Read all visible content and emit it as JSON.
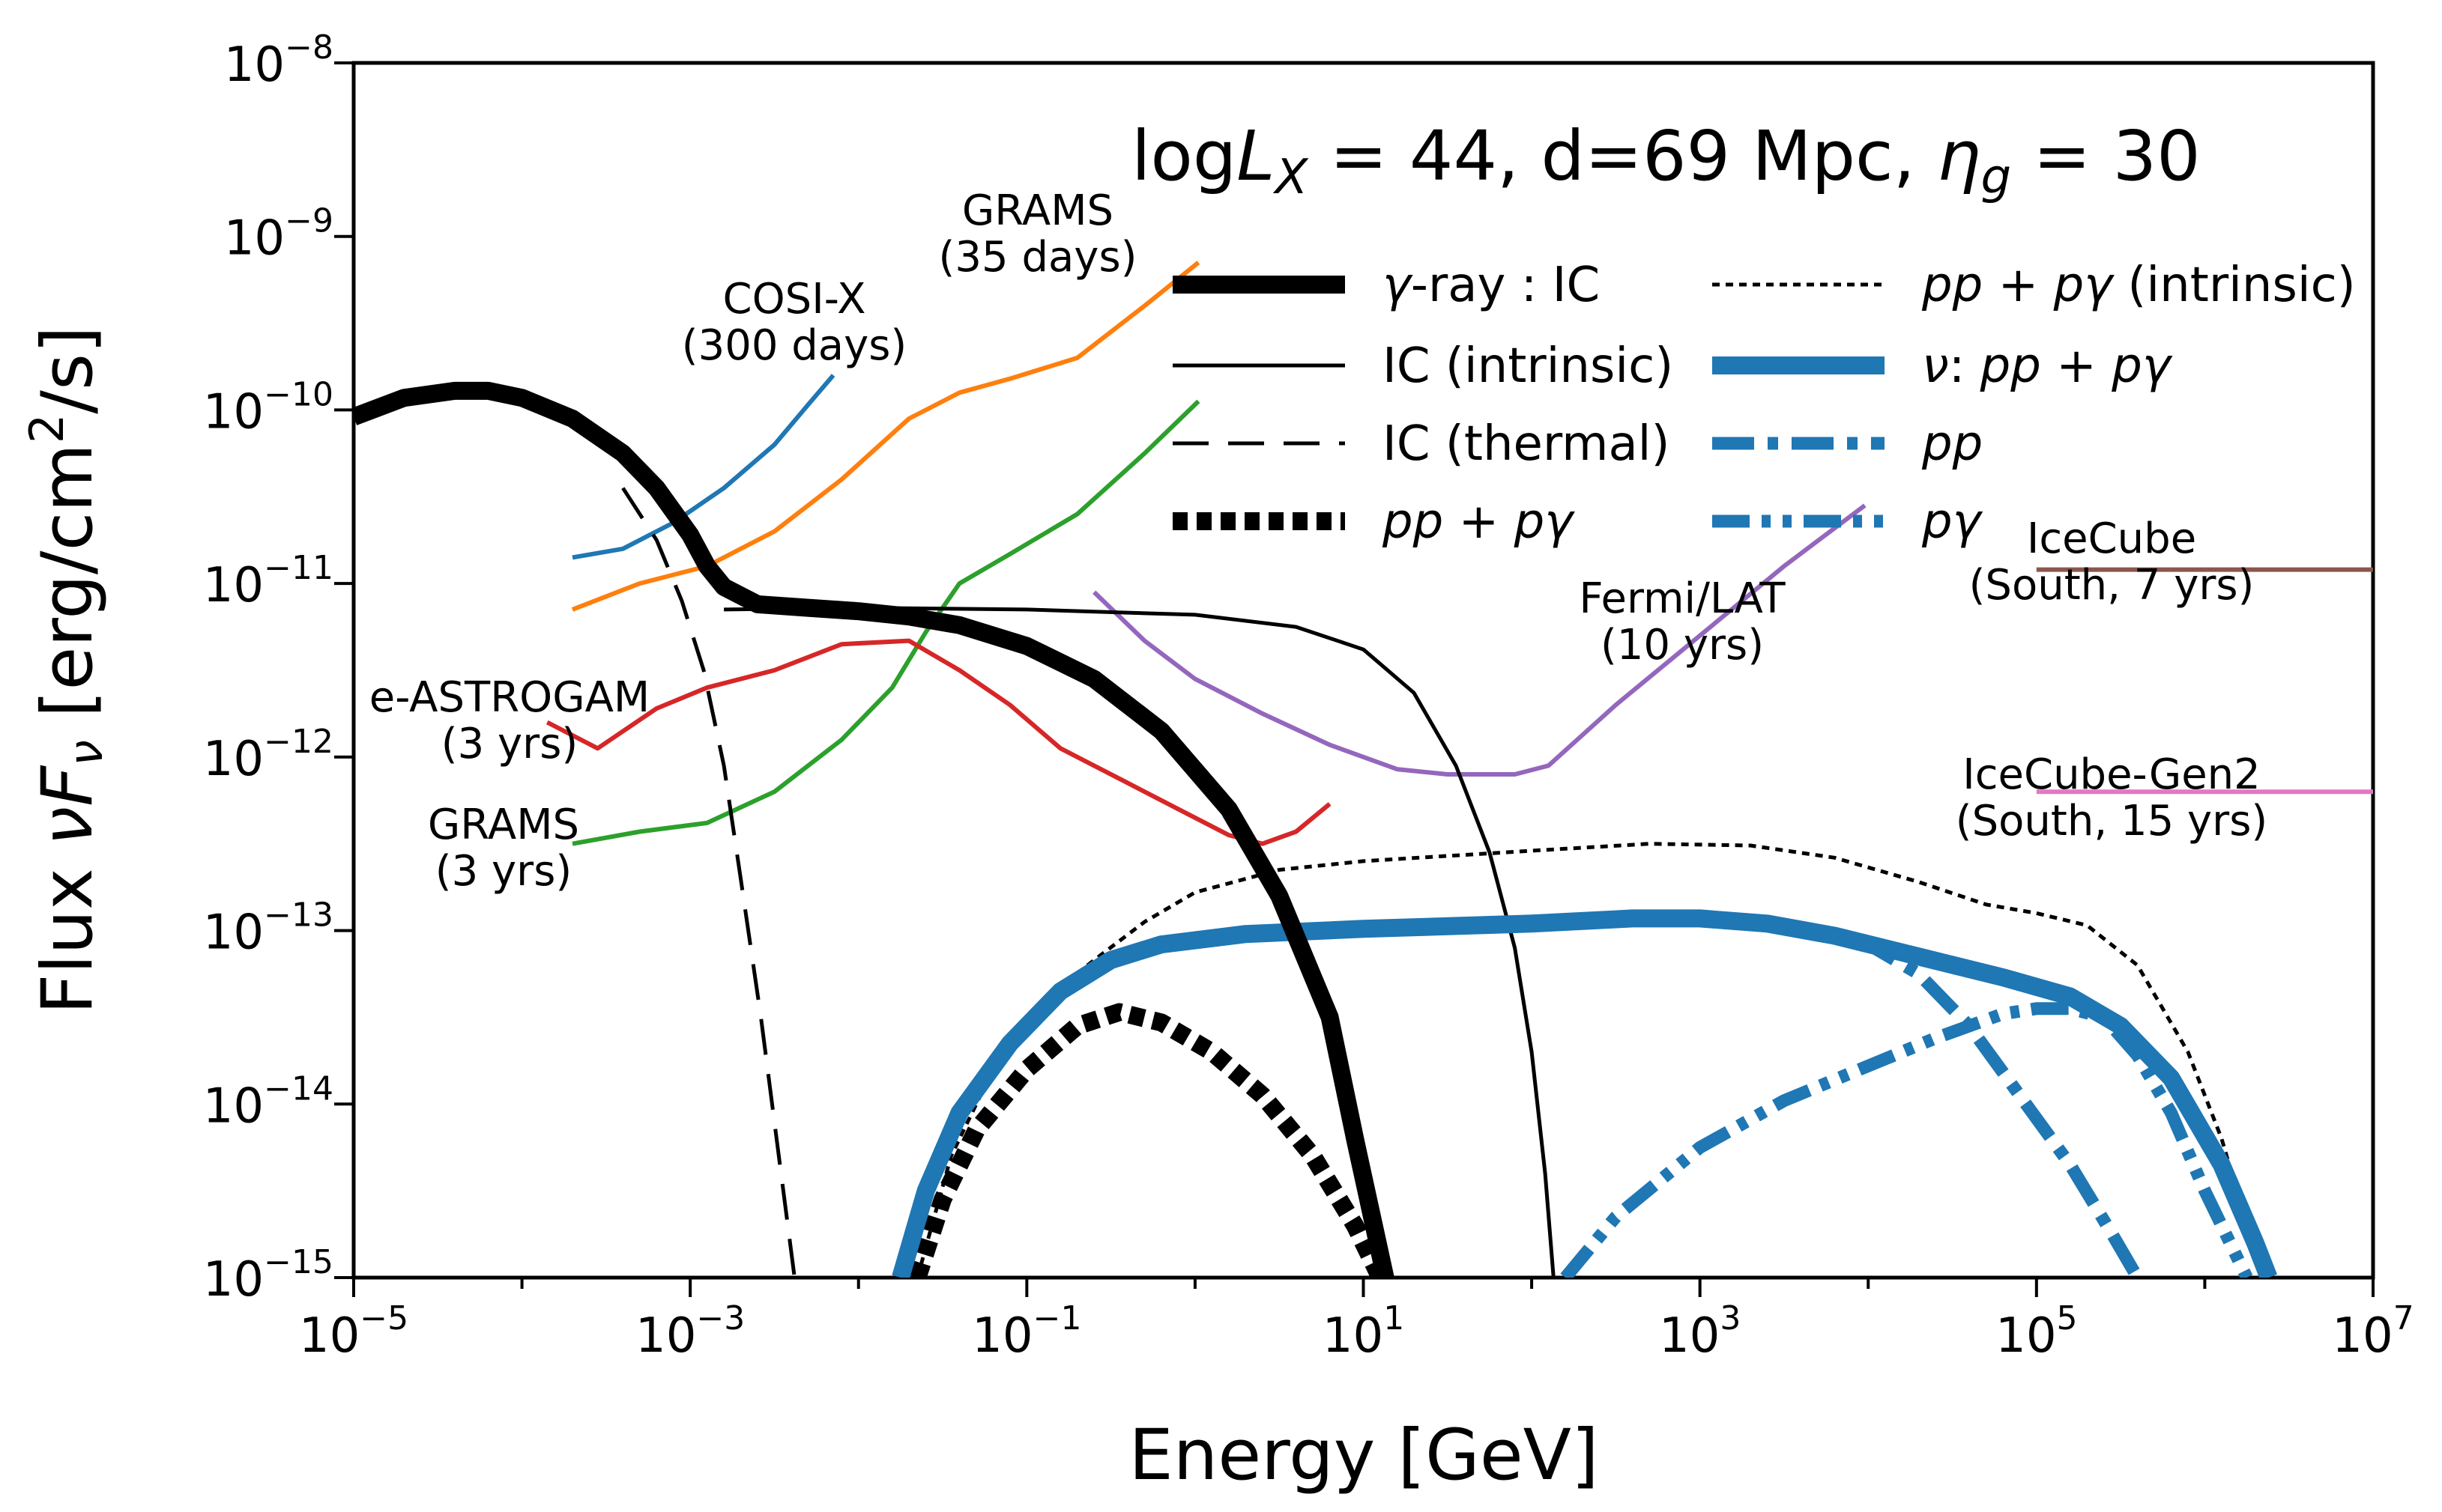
{
  "chart_data": {
    "type": "line",
    "title": "logL_X = 44, d=69 Mpc, η_g = 30",
    "title_parts": {
      "log": "log",
      "L": "L",
      "X": "X",
      "rest1": " = 44, d=69 Mpc, ",
      "eta": "η",
      "g": "g",
      "rest2": " = 30"
    },
    "xlabel": "Energy [GeV]",
    "ylabel": "Flux νF_ν [erg/cm²/s]",
    "ylabel_parts": {
      "a": "Flux ",
      "nu": "ν",
      "F": "F",
      "sub": "ν",
      "b": " [erg/cm",
      "sup": "2",
      "c": "/s]"
    },
    "xscale": "log",
    "yscale": "log",
    "xlim_log10": [
      -5,
      7
    ],
    "ylim_log10": [
      -15,
      -8
    ],
    "xticks": [
      {
        "exp": -5,
        "base": "10",
        "sup": "−5"
      },
      {
        "exp": -3,
        "base": "10",
        "sup": "−3"
      },
      {
        "exp": -1,
        "base": "10",
        "sup": "−1"
      },
      {
        "exp": 1,
        "base": "10",
        "sup": "1"
      },
      {
        "exp": 3,
        "base": "10",
        "sup": "3"
      },
      {
        "exp": 5,
        "base": "10",
        "sup": "5"
      },
      {
        "exp": 7,
        "base": "10",
        "sup": "7"
      }
    ],
    "yticks": [
      {
        "exp": -8,
        "base": "10",
        "sup": "−8"
      },
      {
        "exp": -9,
        "base": "10",
        "sup": "−9"
      },
      {
        "exp": -10,
        "base": "10",
        "sup": "−10"
      },
      {
        "exp": -11,
        "base": "10",
        "sup": "−11"
      },
      {
        "exp": -12,
        "base": "10",
        "sup": "−12"
      },
      {
        "exp": -13,
        "base": "10",
        "sup": "−13"
      },
      {
        "exp": -14,
        "base": "10",
        "sup": "−14"
      },
      {
        "exp": -15,
        "base": "10",
        "sup": "−15"
      }
    ],
    "legend": {
      "placement": "top-right",
      "entries": [
        {
          "key": "gamma_ic",
          "parts": [
            {
              "t": "γ",
              "i": true
            },
            {
              "t": "-ray : IC",
              "i": false
            }
          ]
        },
        {
          "key": "ic_intrinsic",
          "parts": [
            {
              "t": "IC (intrinsic)",
              "i": false
            }
          ]
        },
        {
          "key": "ic_thermal",
          "parts": [
            {
              "t": "IC (thermal)",
              "i": false
            }
          ]
        },
        {
          "key": "pp_pgamma",
          "parts": [
            {
              "t": "pp",
              "i": true
            },
            {
              "t": " + ",
              "i": false
            },
            {
              "t": "pγ",
              "i": true
            }
          ]
        },
        {
          "key": "pp_pgamma_intrinsic",
          "parts": [
            {
              "t": "pp",
              "i": true
            },
            {
              "t": " + ",
              "i": false
            },
            {
              "t": "pγ",
              "i": true
            },
            {
              "t": " (intrinsic)",
              "i": false
            }
          ]
        },
        {
          "key": "nu_total",
          "parts": [
            {
              "t": "ν",
              "i": true
            },
            {
              "t": ": ",
              "i": false
            },
            {
              "t": "pp",
              "i": true
            },
            {
              "t": " + ",
              "i": false
            },
            {
              "t": "pγ",
              "i": true
            }
          ]
        },
        {
          "key": "nu_pp",
          "parts": [
            {
              "t": "pp",
              "i": true
            }
          ]
        },
        {
          "key": "nu_pgamma",
          "parts": [
            {
              "t": "pγ",
              "i": true
            }
          ]
        }
      ]
    },
    "colors": {
      "black": "#000000",
      "nu_blue": "#1f77b4",
      "cosi": "#1f77b4",
      "grams35": "#ff7f0e",
      "grams3": "#2ca02c",
      "eastrogam": "#d62728",
      "fermi": "#9467bd",
      "icecube": "#8c564b",
      "icecube_gen2": "#e377c2"
    },
    "series": [
      {
        "key": "gamma_ic",
        "name": "γ-ray : IC",
        "style": "thick-solid",
        "color": "#000000",
        "points": [
          [
            -5,
            -10.04
          ],
          [
            -4.7,
            -9.93
          ],
          [
            -4.4,
            -9.89
          ],
          [
            -4.2,
            -9.89
          ],
          [
            -4.0,
            -9.93
          ],
          [
            -3.7,
            -10.05
          ],
          [
            -3.4,
            -10.25
          ],
          [
            -3.2,
            -10.45
          ],
          [
            -3.0,
            -10.72
          ],
          [
            -2.9,
            -10.9
          ],
          [
            -2.8,
            -11.02
          ],
          [
            -2.6,
            -11.12
          ],
          [
            -2.3,
            -11.14
          ],
          [
            -2.0,
            -11.16
          ],
          [
            -1.7,
            -11.19
          ],
          [
            -1.4,
            -11.24
          ],
          [
            -1.0,
            -11.36
          ],
          [
            -0.6,
            -11.55
          ],
          [
            -0.2,
            -11.85
          ],
          [
            0.2,
            -12.3
          ],
          [
            0.5,
            -12.8
          ],
          [
            0.8,
            -13.5
          ],
          [
            0.95,
            -14.2
          ],
          [
            1.13,
            -15.0
          ]
        ]
      },
      {
        "key": "ic_intrinsic",
        "name": "IC (intrinsic)",
        "style": "thin-solid",
        "color": "#000000",
        "points": [
          [
            -2.8,
            -11.15
          ],
          [
            -2.0,
            -11.14
          ],
          [
            -1.0,
            -11.15
          ],
          [
            0.0,
            -11.18
          ],
          [
            0.6,
            -11.25
          ],
          [
            1.0,
            -11.38
          ],
          [
            1.3,
            -11.63
          ],
          [
            1.55,
            -12.05
          ],
          [
            1.75,
            -12.55
          ],
          [
            1.9,
            -13.1
          ],
          [
            2.0,
            -13.7
          ],
          [
            2.08,
            -14.4
          ],
          [
            2.13,
            -15.0
          ]
        ]
      },
      {
        "key": "ic_thermal",
        "name": "IC (thermal)",
        "style": "dashed",
        "color": "#000000",
        "points": [
          [
            -3.4,
            -10.45
          ],
          [
            -3.2,
            -10.75
          ],
          [
            -3.05,
            -11.1
          ],
          [
            -2.92,
            -11.5
          ],
          [
            -2.8,
            -12.05
          ],
          [
            -2.7,
            -12.7
          ],
          [
            -2.58,
            -13.5
          ],
          [
            -2.48,
            -14.25
          ],
          [
            -2.38,
            -15.0
          ]
        ]
      },
      {
        "key": "pp_pgamma",
        "name": "pp + pγ",
        "style": "thick-dotted",
        "color": "#000000",
        "points": [
          [
            -1.65,
            -15.0
          ],
          [
            -1.5,
            -14.55
          ],
          [
            -1.3,
            -14.15
          ],
          [
            -1.0,
            -13.8
          ],
          [
            -0.7,
            -13.55
          ],
          [
            -0.45,
            -13.47
          ],
          [
            -0.2,
            -13.53
          ],
          [
            0.1,
            -13.7
          ],
          [
            0.4,
            -13.95
          ],
          [
            0.7,
            -14.3
          ],
          [
            0.95,
            -14.7
          ],
          [
            1.1,
            -15.0
          ]
        ]
      },
      {
        "key": "pp_pgamma_intrinsic",
        "name": "pp + pγ (intrinsic)",
        "style": "thin-dotted",
        "color": "#000000",
        "points": [
          [
            -1.65,
            -15.0
          ],
          [
            -1.45,
            -14.3
          ],
          [
            -1.2,
            -13.8
          ],
          [
            -0.9,
            -13.4
          ],
          [
            -0.6,
            -13.17
          ],
          [
            -0.3,
            -12.95
          ],
          [
            0.0,
            -12.78
          ],
          [
            0.5,
            -12.65
          ],
          [
            1.0,
            -12.6
          ],
          [
            2.0,
            -12.54
          ],
          [
            2.7,
            -12.5
          ],
          [
            3.3,
            -12.51
          ],
          [
            3.8,
            -12.58
          ],
          [
            4.3,
            -12.72
          ],
          [
            4.7,
            -12.85
          ],
          [
            5.0,
            -12.9
          ],
          [
            5.3,
            -12.97
          ],
          [
            5.6,
            -13.2
          ],
          [
            5.9,
            -13.7
          ],
          [
            6.1,
            -14.2
          ],
          [
            6.25,
            -14.7
          ],
          [
            6.35,
            -15.0
          ]
        ]
      },
      {
        "key": "nu_total",
        "name": "ν: pp + pγ",
        "style": "thick-solid",
        "color": "#1f77b4",
        "points": [
          [
            -1.75,
            -15.0
          ],
          [
            -1.6,
            -14.5
          ],
          [
            -1.4,
            -14.05
          ],
          [
            -1.1,
            -13.65
          ],
          [
            -0.8,
            -13.35
          ],
          [
            -0.5,
            -13.17
          ],
          [
            -0.2,
            -13.08
          ],
          [
            0.3,
            -13.02
          ],
          [
            1.0,
            -12.99
          ],
          [
            2.0,
            -12.96
          ],
          [
            2.6,
            -12.93
          ],
          [
            3.0,
            -12.93
          ],
          [
            3.4,
            -12.96
          ],
          [
            3.8,
            -13.03
          ],
          [
            4.3,
            -13.15
          ],
          [
            4.8,
            -13.27
          ],
          [
            5.2,
            -13.38
          ],
          [
            5.5,
            -13.55
          ],
          [
            5.8,
            -13.85
          ],
          [
            6.1,
            -14.35
          ],
          [
            6.3,
            -14.8
          ],
          [
            6.38,
            -15.0
          ]
        ]
      },
      {
        "key": "nu_pp",
        "name": "pp",
        "style": "dashdot",
        "color": "#1f77b4",
        "points": [
          [
            3.0,
            -12.93
          ],
          [
            3.5,
            -12.98
          ],
          [
            4.0,
            -13.08
          ],
          [
            4.3,
            -13.25
          ],
          [
            4.6,
            -13.55
          ],
          [
            4.9,
            -13.95
          ],
          [
            5.2,
            -14.35
          ],
          [
            5.45,
            -14.75
          ],
          [
            5.6,
            -15.0
          ]
        ]
      },
      {
        "key": "nu_pgamma",
        "name": "pγ",
        "style": "dashdotdot",
        "color": "#1f77b4",
        "points": [
          [
            2.2,
            -15.0
          ],
          [
            2.5,
            -14.65
          ],
          [
            3.0,
            -14.25
          ],
          [
            3.5,
            -13.98
          ],
          [
            4.0,
            -13.78
          ],
          [
            4.4,
            -13.62
          ],
          [
            4.8,
            -13.48
          ],
          [
            5.0,
            -13.45
          ],
          [
            5.2,
            -13.45
          ],
          [
            5.4,
            -13.5
          ],
          [
            5.6,
            -13.72
          ],
          [
            5.8,
            -14.05
          ],
          [
            6.0,
            -14.5
          ],
          [
            6.25,
            -15.0
          ]
        ]
      }
    ],
    "sensitivities": [
      {
        "key": "cosi",
        "label_lines": [
          "COSI-X",
          "(300 days)"
        ],
        "color": "#1f77b4",
        "points": [
          [
            -3.7,
            -10.85
          ],
          [
            -3.4,
            -10.8
          ],
          [
            -3.1,
            -10.65
          ],
          [
            -2.8,
            -10.45
          ],
          [
            -2.5,
            -10.2
          ],
          [
            -2.3,
            -9.97
          ],
          [
            -2.15,
            -9.8
          ]
        ]
      },
      {
        "key": "grams35",
        "label_lines": [
          "GRAMS",
          "(35 days)"
        ],
        "color": "#ff7f0e",
        "points": [
          [
            -3.7,
            -11.15
          ],
          [
            -3.3,
            -11.0
          ],
          [
            -2.9,
            -10.9
          ],
          [
            -2.5,
            -10.7
          ],
          [
            -2.1,
            -10.4
          ],
          [
            -1.7,
            -10.05
          ],
          [
            -1.4,
            -9.9
          ],
          [
            -1.1,
            -9.82
          ],
          [
            -0.7,
            -9.7
          ],
          [
            -0.3,
            -9.4
          ],
          [
            0.02,
            -9.15
          ]
        ]
      },
      {
        "key": "grams3",
        "label_lines": [
          "GRAMS",
          "(3 yrs)"
        ],
        "color": "#2ca02c",
        "points": [
          [
            -3.7,
            -12.5
          ],
          [
            -3.3,
            -12.43
          ],
          [
            -2.9,
            -12.38
          ],
          [
            -2.5,
            -12.2
          ],
          [
            -2.1,
            -11.9
          ],
          [
            -1.8,
            -11.6
          ],
          [
            -1.6,
            -11.28
          ],
          [
            -1.4,
            -11.0
          ],
          [
            -1.1,
            -10.83
          ],
          [
            -0.7,
            -10.6
          ],
          [
            -0.3,
            -10.25
          ],
          [
            0.02,
            -9.95
          ]
        ]
      },
      {
        "key": "eastrogam",
        "label_lines": [
          "e-ASTROGAM",
          "(3 yrs)"
        ],
        "color": "#d62728",
        "points": [
          [
            -3.85,
            -11.8
          ],
          [
            -3.55,
            -11.95
          ],
          [
            -3.2,
            -11.72
          ],
          [
            -2.9,
            -11.6
          ],
          [
            -2.5,
            -11.5
          ],
          [
            -2.1,
            -11.35
          ],
          [
            -1.7,
            -11.33
          ],
          [
            -1.4,
            -11.5
          ],
          [
            -1.1,
            -11.7
          ],
          [
            -0.8,
            -11.95
          ],
          [
            -0.4,
            -12.15
          ],
          [
            -0.1,
            -12.3
          ],
          [
            0.2,
            -12.45
          ],
          [
            0.4,
            -12.5
          ],
          [
            0.6,
            -12.43
          ],
          [
            0.8,
            -12.27
          ]
        ]
      },
      {
        "key": "fermi",
        "label_lines": [
          "Fermi/LAT",
          "(10 yrs)"
        ],
        "color": "#9467bd",
        "points": [
          [
            -0.6,
            -11.05
          ],
          [
            -0.3,
            -11.33
          ],
          [
            0.0,
            -11.55
          ],
          [
            0.4,
            -11.75
          ],
          [
            0.8,
            -11.93
          ],
          [
            1.2,
            -12.07
          ],
          [
            1.5,
            -12.1
          ],
          [
            1.9,
            -12.1
          ],
          [
            2.1,
            -12.05
          ],
          [
            2.5,
            -11.7
          ],
          [
            3.0,
            -11.3
          ],
          [
            3.5,
            -10.9
          ],
          [
            3.98,
            -10.55
          ]
        ]
      },
      {
        "key": "icecube",
        "label_lines": [
          "IceCube",
          "(South, 7 yrs)"
        ],
        "color": "#8c564b",
        "points": [
          [
            5.0,
            -10.92
          ],
          [
            7.0,
            -10.92
          ]
        ]
      },
      {
        "key": "icecube_gen2",
        "label_lines": [
          "IceCube-Gen2",
          "(South, 15 yrs)"
        ],
        "color": "#e377c2",
        "points": [
          [
            5.0,
            -12.2
          ],
          [
            7.0,
            -12.2
          ]
        ]
      }
    ]
  }
}
